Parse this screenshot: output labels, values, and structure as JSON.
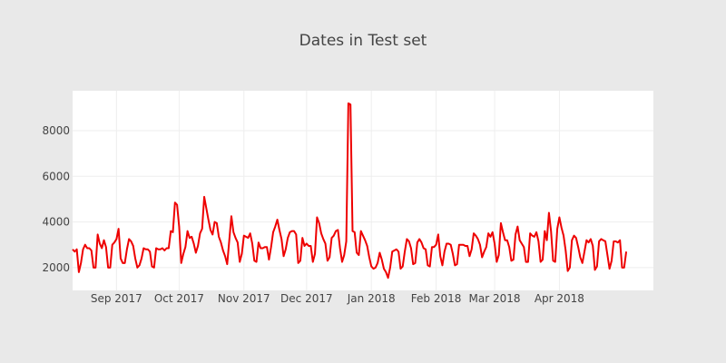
{
  "chart_data": {
    "type": "line",
    "title": "Dates in Test set",
    "xlabel": "",
    "ylabel": "",
    "x_start": "2017-08-11",
    "x_end": "2018-05-16",
    "x_ticks": [
      {
        "label": "Sep 2017",
        "date": "2017-09-01"
      },
      {
        "label": "Oct 2017",
        "date": "2017-10-01"
      },
      {
        "label": "Nov 2017",
        "date": "2017-11-01"
      },
      {
        "label": "Dec 2017",
        "date": "2017-12-01"
      },
      {
        "label": "Jan 2018",
        "date": "2018-01-01"
      },
      {
        "label": "Feb 2018",
        "date": "2018-02-01"
      },
      {
        "label": "Mar 2018",
        "date": "2018-03-01"
      },
      {
        "label": "Apr 2018",
        "date": "2018-04-01"
      }
    ],
    "ylim": [
      1000,
      9750
    ],
    "y_ticks": [
      2000,
      4000,
      6000,
      8000
    ],
    "grid": true,
    "legend": "none",
    "colors": {
      "line": "#ee0000",
      "plot_bg": "#ffffff",
      "paper_bg": "#e9e9e9",
      "grid": "#eeeeee",
      "text": "#444444"
    },
    "series": [
      {
        "values": [
          2800,
          2700,
          2800,
          1800,
          2200,
          2800,
          3000,
          2850,
          2850,
          2750,
          2000,
          2000,
          3450,
          3050,
          2850,
          3200,
          2900,
          2000,
          2000,
          3000,
          3100,
          3250,
          3700,
          2400,
          2200,
          2200,
          2800,
          3250,
          3150,
          2950,
          2400,
          2000,
          2100,
          2400,
          2850,
          2800,
          2800,
          2700,
          2050,
          2000,
          2850,
          2800,
          2800,
          2850,
          2750,
          2850,
          2850,
          3600,
          3550,
          4850,
          4750,
          3800,
          2200,
          2600,
          2900,
          3600,
          3300,
          3350,
          3050,
          2650,
          2950,
          3500,
          3700,
          5100,
          4600,
          4100,
          3650,
          3450,
          4000,
          3950,
          3350,
          3100,
          2750,
          2500,
          2150,
          3200,
          4250,
          3550,
          3300,
          3100,
          2250,
          2600,
          3400,
          3350,
          3300,
          3500,
          3050,
          2300,
          2250,
          3100,
          2850,
          2850,
          2900,
          2900,
          2350,
          2900,
          3550,
          3800,
          4100,
          3650,
          3250,
          2500,
          2800,
          3300,
          3550,
          3600,
          3600,
          3450,
          2200,
          2300,
          3300,
          2950,
          3050,
          2950,
          2950,
          2250,
          2600,
          4200,
          3950,
          3500,
          3250,
          3050,
          2300,
          2450,
          3300,
          3400,
          3600,
          3650,
          2850,
          2250,
          2550,
          3150,
          9200,
          9150,
          3600,
          3550,
          2650,
          2550,
          3600,
          3400,
          3200,
          2950,
          2450,
          2050,
          1950,
          2000,
          2200,
          2650,
          2350,
          1950,
          1800,
          1550,
          2000,
          2700,
          2750,
          2800,
          2700,
          1950,
          2050,
          2700,
          3250,
          3150,
          2850,
          2150,
          2200,
          3100,
          3250,
          3100,
          2850,
          2800,
          2100,
          2050,
          2900,
          2900,
          3000,
          3450,
          2500,
          2100,
          2700,
          3050,
          3050,
          3000,
          2600,
          2100,
          2150,
          3000,
          3000,
          3000,
          2950,
          2950,
          2500,
          2800,
          3500,
          3400,
          3250,
          3000,
          2450,
          2700,
          2900,
          3500,
          3350,
          3550,
          3050,
          2250,
          2550,
          3950,
          3550,
          3200,
          3200,
          2900,
          2300,
          2350,
          3450,
          3800,
          3200,
          3050,
          2900,
          2250,
          2250,
          3500,
          3400,
          3350,
          3550,
          3150,
          2250,
          2350,
          3600,
          3200,
          4400,
          3600,
          2300,
          2250,
          3700,
          4200,
          3750,
          3400,
          2750,
          1850,
          2000,
          3200,
          3400,
          3300,
          2900,
          2450,
          2200,
          2700,
          3200,
          3100,
          3250,
          2950,
          1900,
          2050,
          3150,
          3250,
          3200,
          3150,
          2550,
          1950,
          2300,
          3150,
          3150,
          3100,
          3200,
          2000,
          2000,
          2700
        ]
      }
    ]
  }
}
